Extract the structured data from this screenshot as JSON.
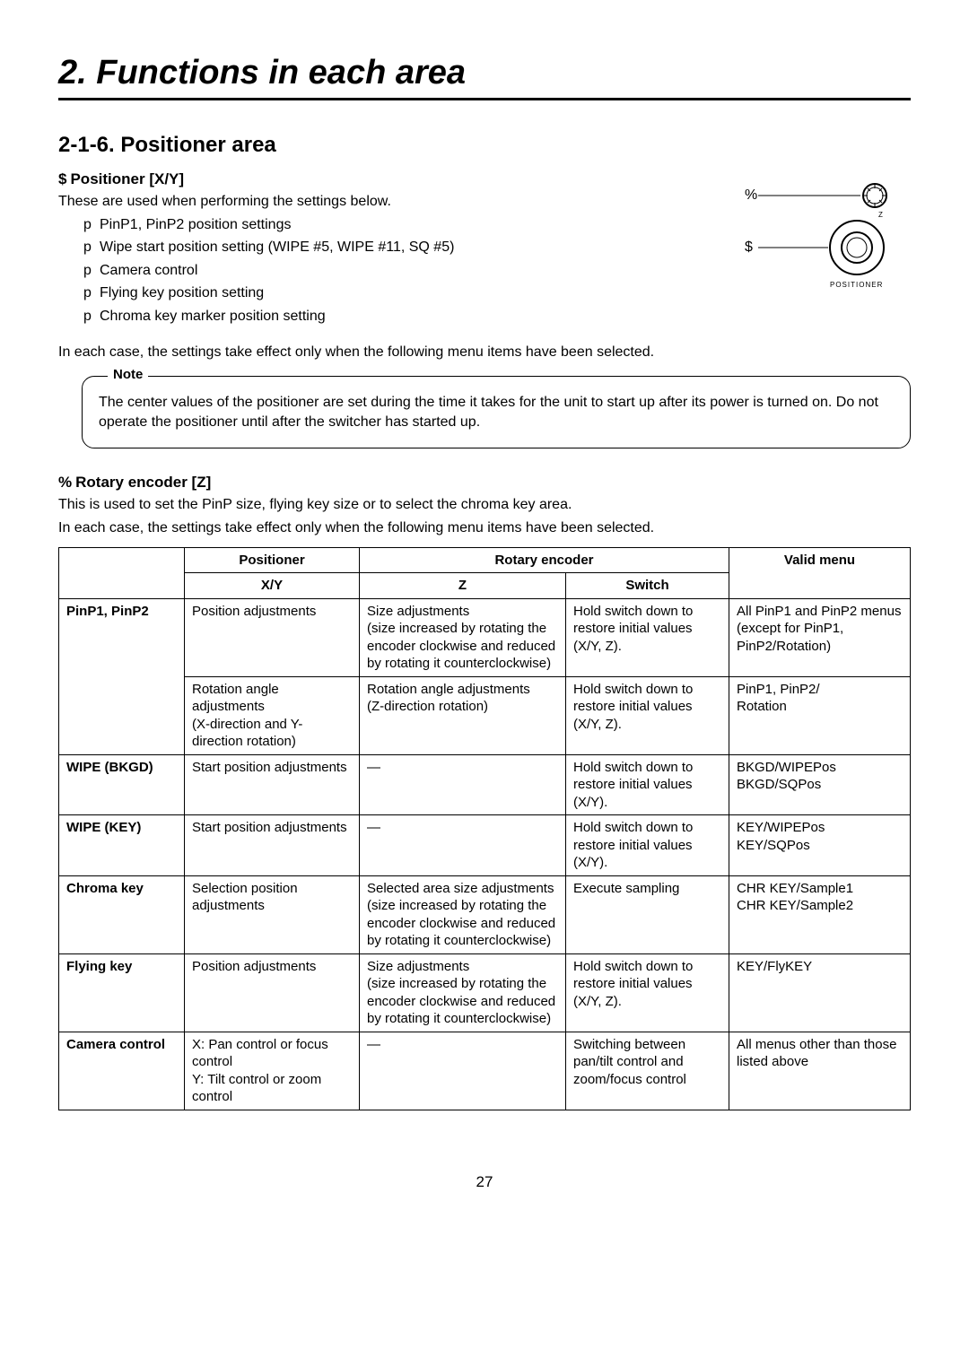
{
  "title": "2. Functions in each area",
  "section": "2-1-6. Positioner area",
  "positioner": {
    "marker": "$",
    "heading": "Positioner [X/Y]",
    "intro": "These are used when performing the settings below.",
    "bullets": [
      "PinP1, PinP2 position settings",
      "Wipe start position setting (WIPE #5, WIPE #11, SQ #5)",
      "Camera control",
      "Flying key position setting",
      "Chroma key marker position setting"
    ],
    "after": "In each case, the settings take effect only when the following menu items have been selected."
  },
  "diagram": {
    "label_z": "%",
    "label_xy": "$",
    "z_text": "Z",
    "caption": "POSITIONER"
  },
  "note": {
    "label": "Note",
    "text": "The center values of the positioner are set during the time it takes for the unit to start up after its power is turned on. Do not operate the positioner until after the switcher has started up."
  },
  "rotary": {
    "marker": "%",
    "heading": "Rotary encoder [Z]",
    "line1": "This is used to set the PinP size, flying key size or to select the chroma key area.",
    "line2": "In each case, the settings take effect only when the following menu items have been selected."
  },
  "table": {
    "h_positioner": "Positioner",
    "h_rotary": "Rotary encoder",
    "h_valid": "Valid menu",
    "h_xy": "X/Y",
    "h_z": "Z",
    "h_switch": "Switch",
    "rows": [
      {
        "name": "PinP1, PinP2",
        "span": 2,
        "cells": [
          [
            "Position adjustments",
            "Size adjustments\n(size increased by rotating the encoder clockwise and reduced by rotating it counterclockwise)",
            "Hold switch down to restore initial values (X/Y, Z).",
            "All PinP1 and PinP2 menus (except for PinP1, PinP2/Rotation)"
          ],
          [
            "Rotation angle adjustments\n(X-direction and Y-direction rotation)",
            "Rotation angle adjustments\n(Z-direction rotation)",
            "Hold switch down to restore initial values (X/Y, Z).",
            "PinP1, PinP2/\nRotation"
          ]
        ]
      },
      {
        "name": "WIPE (BKGD)",
        "span": 1,
        "cells": [
          [
            "Start position adjustments",
            "—",
            "Hold switch down to restore initial values (X/Y).",
            "BKGD/WIPEPos\nBKGD/SQPos"
          ]
        ]
      },
      {
        "name": "WIPE (KEY)",
        "span": 1,
        "cells": [
          [
            "Start position adjustments",
            "—",
            "Hold switch down to restore initial values (X/Y).",
            "KEY/WIPEPos\nKEY/SQPos"
          ]
        ]
      },
      {
        "name": "Chroma key",
        "span": 1,
        "cells": [
          [
            "Selection position adjustments",
            "Selected area size adjustments\n(size increased by rotating the encoder clockwise and reduced by rotating it counterclockwise)",
            "Execute sampling",
            "CHR KEY/Sample1\nCHR KEY/Sample2"
          ]
        ]
      },
      {
        "name": "Flying key",
        "span": 1,
        "cells": [
          [
            "Position adjustments",
            "Size adjustments\n(size increased by rotating the encoder clockwise and reduced by rotating it counterclockwise)",
            "Hold switch down to restore initial values (X/Y, Z).",
            "KEY/FlyKEY"
          ]
        ]
      },
      {
        "name": "Camera control",
        "span": 1,
        "cells": [
          [
            "X: Pan control or focus\n    control\nY: Tilt control or zoom\n    control",
            "—",
            "Switching between pan/tilt control and zoom/focus control",
            "All menus other than those listed above"
          ]
        ]
      }
    ]
  },
  "page_number": "27"
}
